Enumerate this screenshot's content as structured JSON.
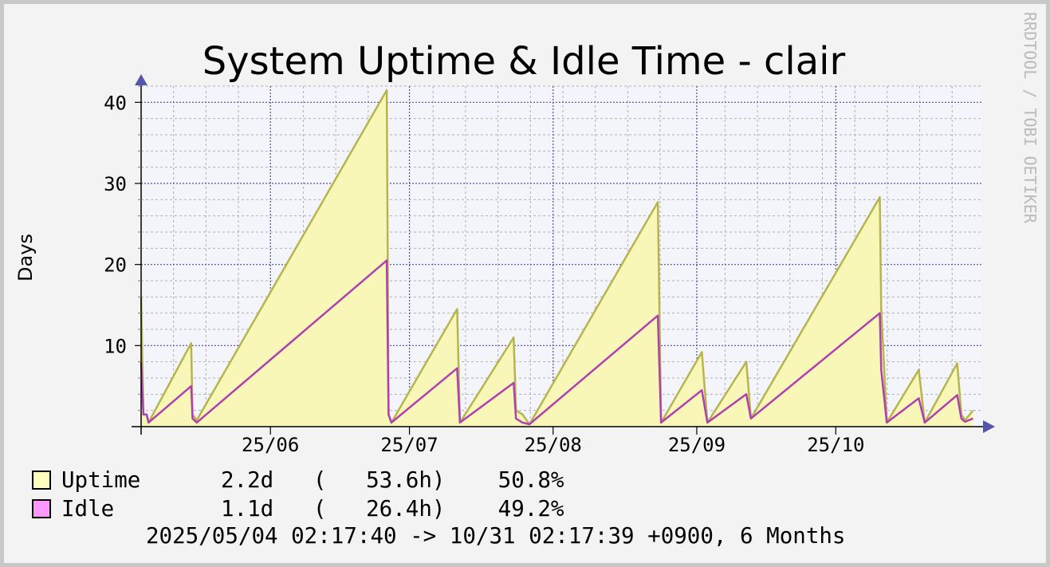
{
  "chart_data": {
    "type": "line",
    "title": "System Uptime & Idle Time - clair",
    "y_label": "Days",
    "watermark": "RRDTOOL / TOBI OETIKER",
    "footer": "2025/05/04 02:17:40 -> 10/31 02:17:39 +0900, 6 Months",
    "x": [
      0,
      0.5,
      1.2,
      1.6,
      10.8,
      11.1,
      12.0,
      53.0,
      53.4,
      54.0,
      68.2,
      68.8,
      80.4,
      80.9,
      82.3,
      83.8,
      111.5,
      112.2,
      121.0,
      122.2,
      130.6,
      131.6,
      159.4,
      159.7,
      160.9,
      167.8,
      169.1,
      176.1,
      177.0,
      177.8,
      179.5
    ],
    "xlim": [
      0,
      181.5
    ],
    "xticks": [
      {
        "value": 27.9,
        "label": "25/06"
      },
      {
        "value": 57.9,
        "label": "25/07"
      },
      {
        "value": 88.9,
        "label": "25/08"
      },
      {
        "value": 119.9,
        "label": "25/09"
      },
      {
        "value": 149.9,
        "label": "25/10"
      }
    ],
    "x_minor_ticks": [
      7,
      14,
      21,
      35,
      42,
      49,
      63,
      70,
      77,
      84,
      91,
      98,
      105,
      112,
      126,
      133,
      140,
      147,
      154,
      161,
      168,
      175
    ],
    "ylim": [
      0,
      42
    ],
    "yticks": [
      10,
      20,
      30,
      40
    ],
    "y_minor_ticks": [
      2,
      4,
      6,
      8,
      12,
      14,
      16,
      18,
      22,
      24,
      26,
      28,
      32,
      34,
      36,
      38,
      42
    ],
    "grid": true,
    "series": [
      {
        "name": "Uptime",
        "color": "#b5b54f",
        "fill": "#f9f7b8",
        "legend_color": "#ffffc0",
        "stats": "2.2d   (   53.6h)    50.8%",
        "values": [
          16,
          1.5,
          1.5,
          0.5,
          10.3,
          1.5,
          0.8,
          41.5,
          1.5,
          0.5,
          14.5,
          0.5,
          11,
          2,
          1.5,
          0.3,
          27.7,
          0.5,
          9.2,
          0.5,
          8.0,
          1.0,
          28.3,
          14.5,
          0.5,
          7.0,
          0.5,
          7.8,
          1.5,
          0.8,
          2.0
        ]
      },
      {
        "name": "Idle",
        "color": "#b040b0",
        "legend_color": "#ff99ff",
        "stats": "1.1d   (   26.4h)    49.2%",
        "values": [
          8,
          1.5,
          1.5,
          0.5,
          5.0,
          1.0,
          0.5,
          20.5,
          1.5,
          0.5,
          7.2,
          0.5,
          5.4,
          1,
          0.5,
          0.3,
          13.7,
          0.5,
          4.5,
          0.5,
          4.0,
          1.0,
          14.0,
          7.0,
          0.5,
          3.5,
          0.5,
          3.9,
          1.0,
          0.6,
          1.0
        ]
      }
    ]
  }
}
